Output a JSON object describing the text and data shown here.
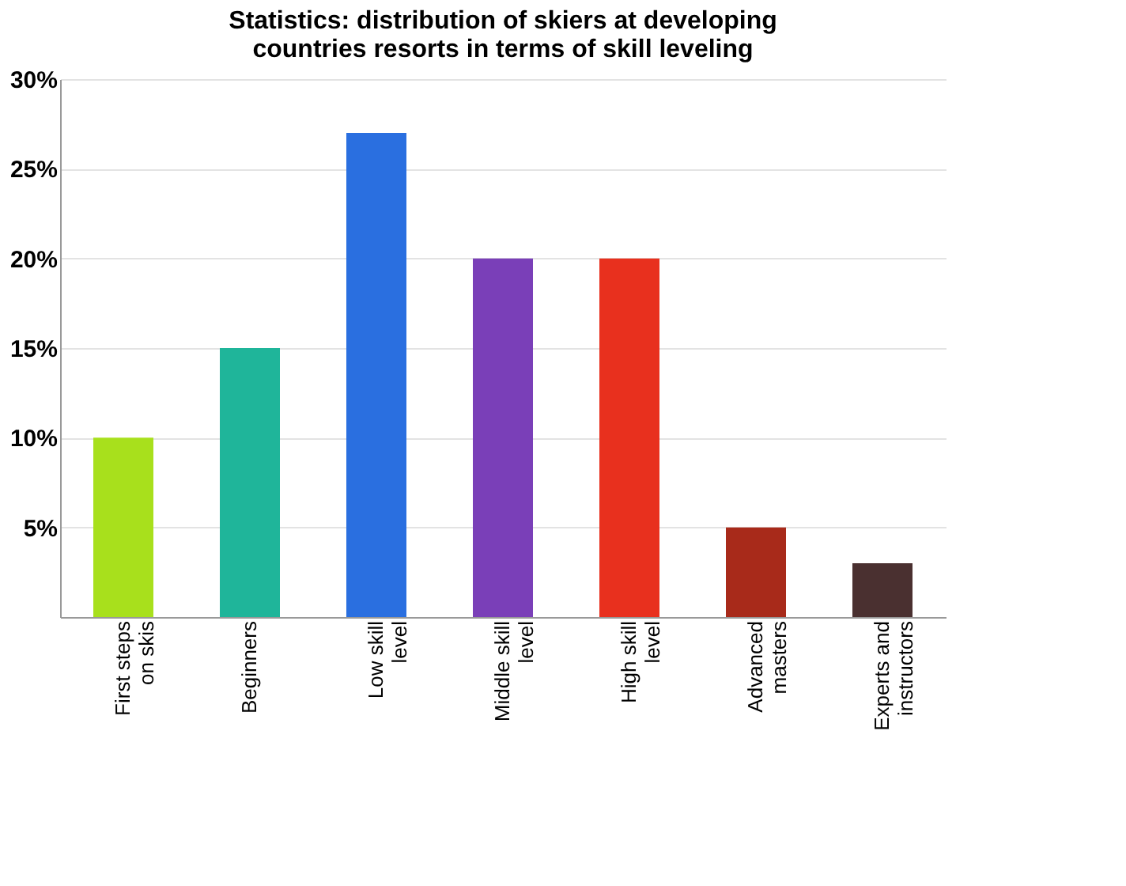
{
  "chart_data": {
    "type": "bar",
    "title": "Statistics: distribution of skiers at developing countries resorts in terms of skill leveling",
    "categories": [
      "First steps on skis",
      "Beginners",
      "Low skill level",
      "Middle skill level",
      "High skill level",
      "Advanced masters",
      "Experts and instructors"
    ],
    "values": [
      10,
      15,
      27,
      20,
      20,
      5,
      3
    ],
    "colors": [
      "#a8e01c",
      "#1fb59a",
      "#2a6fe0",
      "#7a3fb8",
      "#e8301e",
      "#a82a1a",
      "#4a3030"
    ],
    "ylim": [
      0,
      30
    ],
    "yticks": [
      {
        "value": 5,
        "label": "5%"
      },
      {
        "value": 10,
        "label": "10%"
      },
      {
        "value": 15,
        "label": "15%"
      },
      {
        "value": 20,
        "label": "20%"
      },
      {
        "value": 25,
        "label": "25%"
      },
      {
        "value": 30,
        "label": "30%"
      }
    ],
    "grid": "y"
  }
}
